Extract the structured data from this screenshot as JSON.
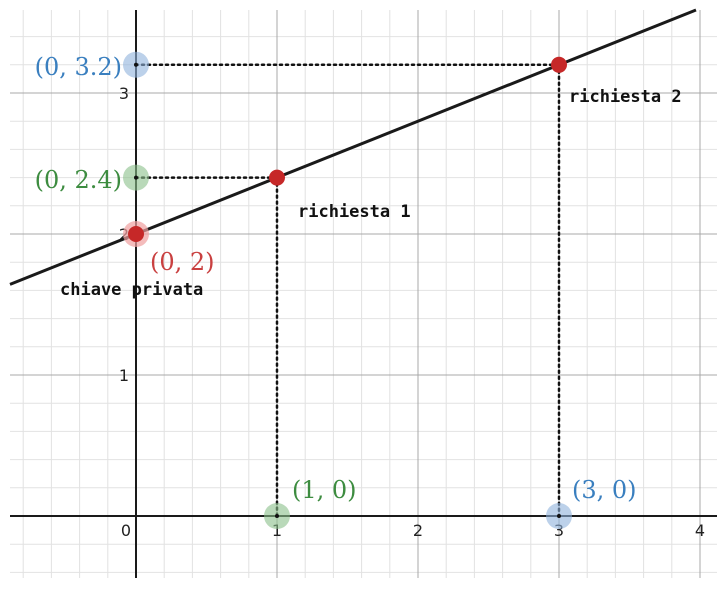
{
  "chart_data": {
    "type": "line",
    "title": "",
    "xlabel": "",
    "ylabel": "",
    "xlim": [
      -0.9,
      4.1
    ],
    "ylim": [
      -0.45,
      3.6
    ],
    "grid": true,
    "minor_grid": true,
    "x_ticks": [
      "0",
      "1",
      "2",
      "3",
      "4"
    ],
    "y_ticks": [
      "1",
      "2",
      "3"
    ],
    "line": {
      "slope": 0.4,
      "intercept": 2,
      "color": "#1a1a1a"
    },
    "points": [
      {
        "x": 0,
        "y": 2,
        "label": "(0, 2)",
        "label_color": "#c94040",
        "marker": "red",
        "annotation": "chiave privata"
      },
      {
        "x": 1,
        "y": 2.4,
        "label": "",
        "label_color": "",
        "marker": "red",
        "annotation": "richiesta 1"
      },
      {
        "x": 3,
        "y": 3.2,
        "label": "",
        "label_color": "",
        "marker": "red",
        "annotation": "richiesta 2"
      },
      {
        "x": 1,
        "y": 0,
        "label": "(1, 0)",
        "label_color": "#3d8c40",
        "marker": "green",
        "annotation": ""
      },
      {
        "x": 3,
        "y": 0,
        "label": "(3, 0)",
        "label_color": "#3a7fbf",
        "marker": "blue",
        "annotation": ""
      },
      {
        "x": 0,
        "y": 2.4,
        "label": "(0, 2.4)",
        "label_color": "#3d8c40",
        "marker": "green",
        "annotation": ""
      },
      {
        "x": 0,
        "y": 3.2,
        "label": "(0, 3.2)",
        "label_color": "#3a7fbf",
        "marker": "blue",
        "annotation": ""
      }
    ],
    "colors": {
      "red": "#c62828",
      "green_halo": "#8bbf8b",
      "blue_halo": "#8fb2dc",
      "red_halo": "#f0a0a0",
      "grid_major": "#a8a8a8",
      "grid_minor": "#e2e2e2",
      "axis": "#1a1a1a"
    }
  }
}
